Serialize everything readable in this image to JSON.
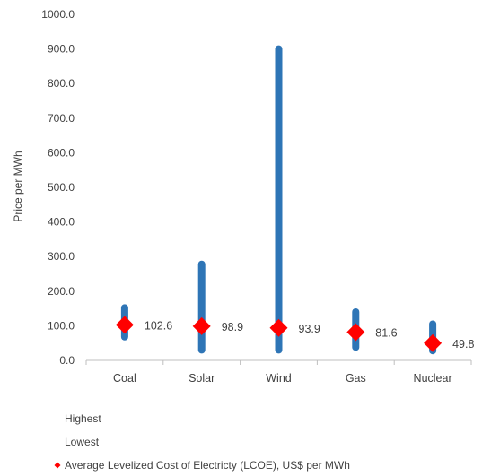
{
  "chart_data": {
    "type": "high-low-point",
    "title": "",
    "xlabel": "",
    "ylabel": "Price per MWh",
    "ylim": [
      0,
      1000
    ],
    "y_ticks": [
      "0.0",
      "100.0",
      "200.0",
      "300.0",
      "400.0",
      "500.0",
      "600.0",
      "700.0",
      "800.0",
      "900.0",
      "1000.0"
    ],
    "categories": [
      "Coal",
      "Solar",
      "Wind",
      "Gas",
      "Nuclear"
    ],
    "series": [
      {
        "name": "Highest",
        "values": [
          152,
          278,
          900,
          140,
          105
        ]
      },
      {
        "name": "Lowest",
        "values": [
          68,
          30,
          30,
          38,
          28
        ]
      },
      {
        "name": "Average Levelized Cost of Electricty (LCOE), US$ per MWh",
        "values": [
          102.6,
          98.9,
          93.9,
          81.6,
          49.8
        ]
      }
    ],
    "data_labels": [
      "102.6",
      "98.9",
      "93.9",
      "81.6",
      "49.8"
    ],
    "grid": false,
    "legend_position": "bottom-left",
    "colors": {
      "range_bar": "#2E75B6",
      "average_marker": "#FF0000",
      "axis": "#BFBFBF",
      "text": "#404040"
    }
  }
}
